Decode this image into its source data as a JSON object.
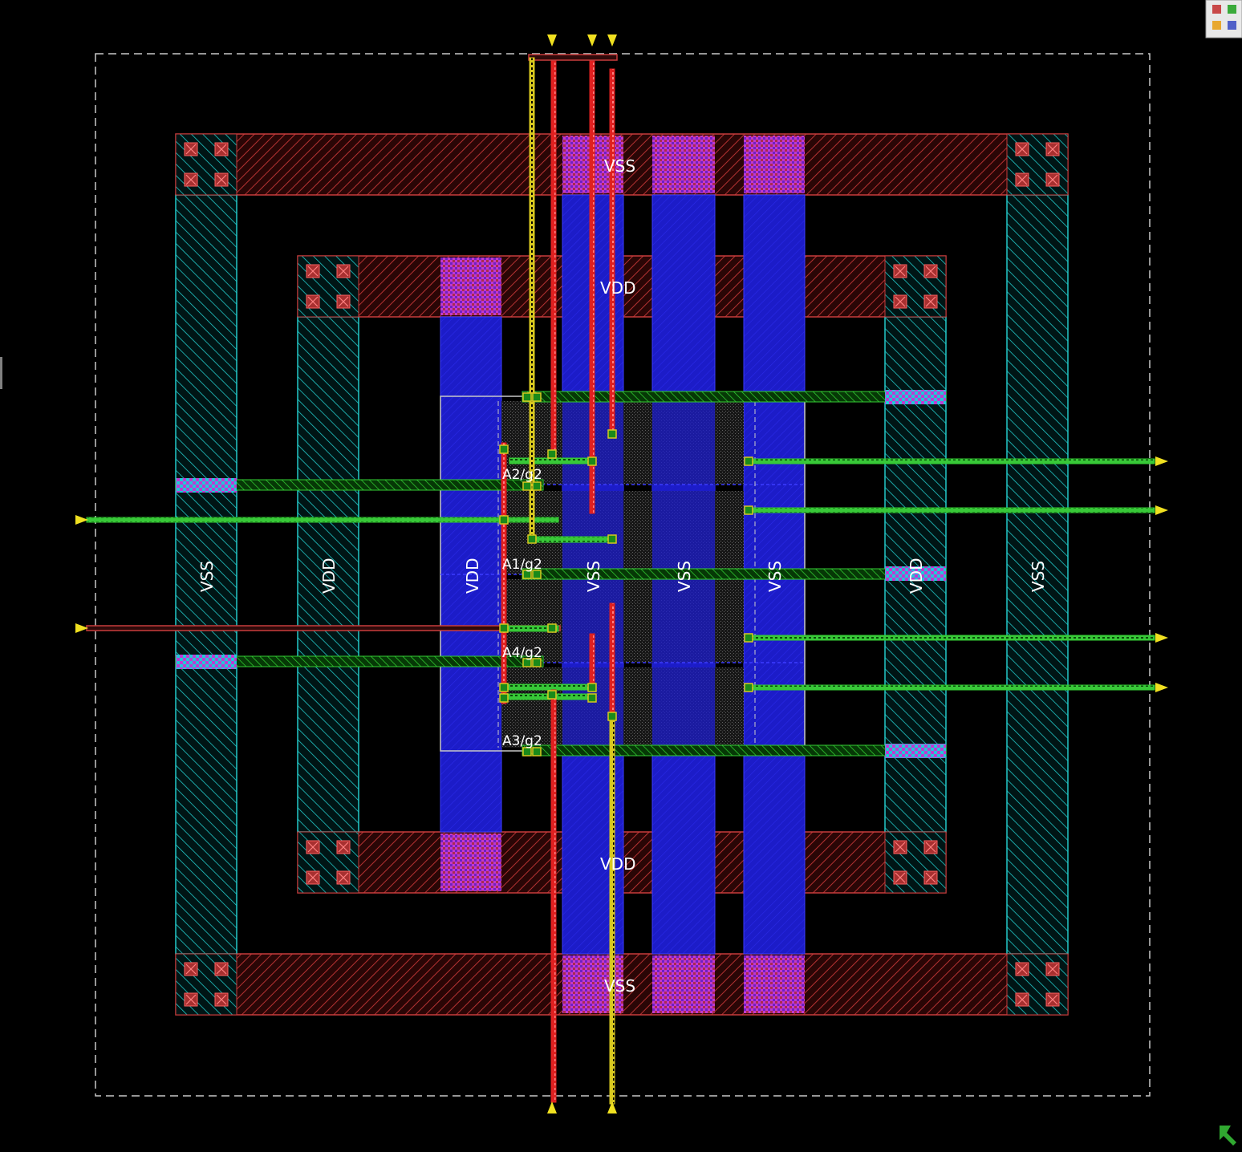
{
  "view": {
    "background": "#000000",
    "colors": {
      "metal1": "#c83c3c",
      "metal2": "#2ad0d0",
      "metal3": "#3c3cff",
      "metal4": "#33cc33",
      "pin": "#f0e020",
      "via": "#d040d0",
      "boundary": "#c8c8c8"
    }
  },
  "labels": {
    "vss": "VSS",
    "vdd": "VDD"
  },
  "instances": {
    "a2": "A2/g2",
    "a1": "A1/g2",
    "a4": "A4/g2",
    "a3": "A3/g2"
  },
  "toolbar": {
    "icon": "layer-palette-icon"
  },
  "corner": {
    "icon": "arrow-up-left-icon"
  }
}
